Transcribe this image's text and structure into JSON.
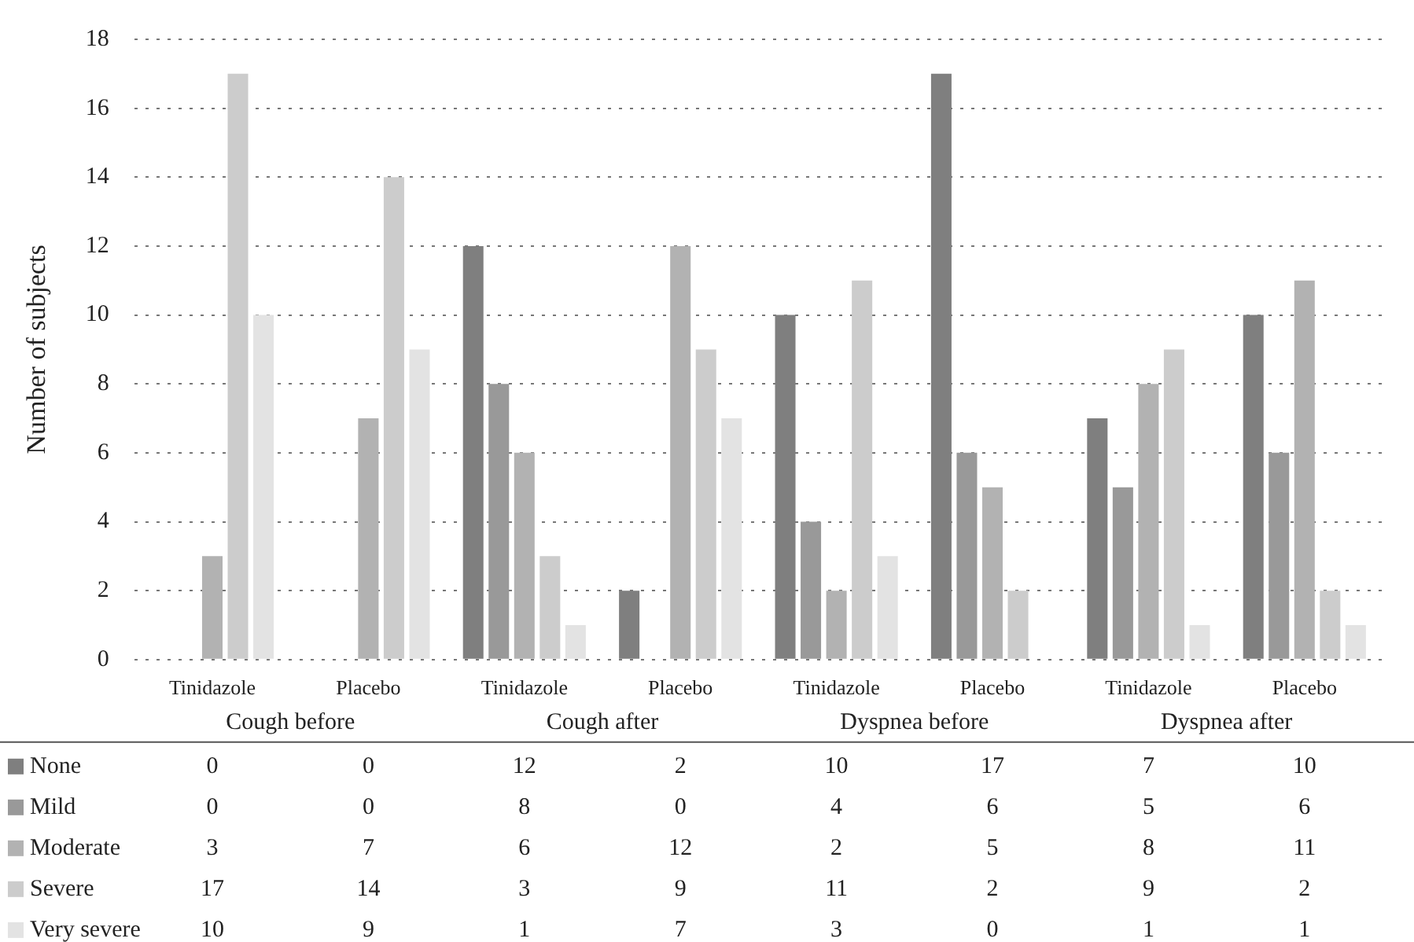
{
  "chart_data": {
    "type": "bar",
    "ylabel": "Number of subjects",
    "categories": [
      "Tinidazole",
      "Placebo",
      "Tinidazole",
      "Placebo",
      "Tinidazole",
      "Placebo",
      "Tinidazole",
      "Placebo"
    ],
    "annotations": [
      "Cough before",
      "Cough after",
      "Dyspnea before",
      "Dyspnea after"
    ],
    "series": [
      {
        "name": "None",
        "color": "#7f7f7f",
        "values": [
          0,
          0,
          12,
          2,
          10,
          17,
          7,
          10
        ]
      },
      {
        "name": "Mild",
        "color": "#999999",
        "values": [
          0,
          0,
          8,
          0,
          4,
          6,
          5,
          6
        ]
      },
      {
        "name": "Moderate",
        "color": "#b2b2b2",
        "values": [
          3,
          7,
          6,
          12,
          2,
          5,
          8,
          11
        ]
      },
      {
        "name": "Severe",
        "color": "#cccccc",
        "values": [
          17,
          14,
          3,
          9,
          11,
          2,
          9,
          2
        ]
      },
      {
        "name": "Very severe",
        "color": "#e3e3e3",
        "values": [
          10,
          9,
          1,
          7,
          3,
          0,
          1,
          1
        ]
      }
    ],
    "ylim": [
      0,
      18
    ],
    "yticks": [
      0,
      2,
      4,
      6,
      8,
      10,
      12,
      14,
      16,
      18
    ],
    "grid": "y",
    "legend": "bottom",
    "data_labels": true
  }
}
